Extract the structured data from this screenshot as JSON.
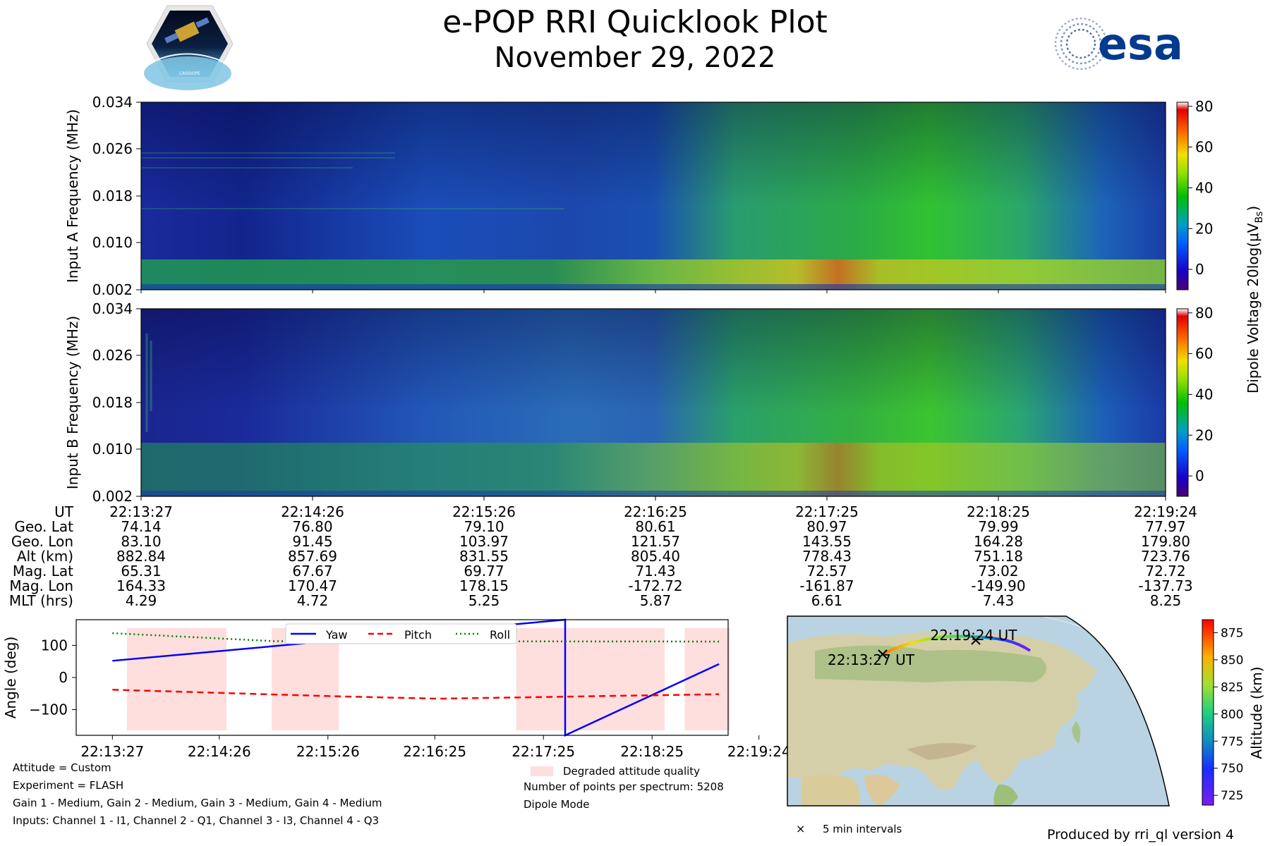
{
  "header": {
    "title": "e-POP RRI Quicklook Plot",
    "subtitle": "November 29, 2022",
    "left_logo": {
      "name": "cassiope-mission-logo",
      "text": "CASSIOPE"
    },
    "right_logo": {
      "name": "esa-logo",
      "text": "esa"
    }
  },
  "colors": {
    "yaw": "#0000ff",
    "pitch": "#ff0000",
    "roll": "#008000",
    "degraded": "#ffdede",
    "map_ocean": "#b9d3e3",
    "map_land": "#d8d2b0"
  },
  "chart_data": [
    {
      "id": "spectrogram-a",
      "type": "heatmap",
      "ylabel": "Input A Frequency (MHz)",
      "yticks": [
        "0.002",
        "0.010",
        "0.018",
        "0.026",
        "0.034"
      ],
      "ylim": [
        0.002,
        0.034
      ],
      "cbar_ticks": [
        "0",
        "20",
        "40",
        "60",
        "80"
      ],
      "clim": [
        -10,
        82
      ]
    },
    {
      "id": "spectrogram-b",
      "type": "heatmap",
      "ylabel": "Input B Frequency (MHz)",
      "yticks": [
        "0.002",
        "0.010",
        "0.018",
        "0.026",
        "0.034"
      ],
      "ylim": [
        0.002,
        0.034
      ],
      "cbar_ticks": [
        "0",
        "20",
        "40",
        "60",
        "80"
      ],
      "clim": [
        -10,
        82
      ]
    },
    {
      "id": "attitude",
      "type": "line",
      "ylabel": "Angle (deg)",
      "yticks": [
        "100",
        "0",
        "−100"
      ],
      "ytick_values": [
        100,
        0,
        -100
      ],
      "ylim": [
        -180,
        180
      ],
      "xticks": [
        "22:13:27",
        "22:14:26",
        "22:15:26",
        "22:16:25",
        "22:17:25",
        "22:18:25",
        "22:19:24"
      ],
      "xlim_seconds": [
        -20,
        340
      ],
      "series": [
        {
          "name": "Yaw",
          "style": "solid",
          "x": [
            0,
            250,
            250,
            335
          ],
          "y": [
            52,
            180,
            -180,
            42
          ]
        },
        {
          "name": "Pitch",
          "style": "dashed",
          "x": [
            0,
            120,
            180,
            335
          ],
          "y": [
            -38,
            -58,
            -66,
            -52
          ]
        },
        {
          "name": "Roll",
          "style": "dotted",
          "x": [
            0,
            90,
            335
          ],
          "y": [
            138,
            113,
            112
          ]
        }
      ],
      "degraded_intervals": [
        [
          8,
          63
        ],
        [
          88,
          125
        ],
        [
          223,
          305
        ],
        [
          316,
          341
        ]
      ],
      "legend": {
        "position": "top-center",
        "yaw": "Yaw",
        "pitch": "Pitch",
        "roll": "Roll"
      }
    }
  ],
  "shared_colorbar_label": "Dipole Voltage 20log(μV",
  "shared_colorbar_label_sub": "Bs",
  "ephemeris": {
    "labels": [
      "UT",
      "Geo. Lat",
      "Geo. Lon",
      "Alt (km)",
      "Mag. Lat",
      "Mag. Lon",
      "MLT (hrs)"
    ],
    "columns": [
      [
        "22:13:27",
        "74.14",
        "83.10",
        "882.84",
        "65.31",
        "164.33",
        "4.29"
      ],
      [
        "22:14:26",
        "76.80",
        "91.45",
        "857.69",
        "67.67",
        "170.47",
        "4.72"
      ],
      [
        "22:15:26",
        "79.10",
        "103.97",
        "831.55",
        "69.77",
        "178.15",
        "5.25"
      ],
      [
        "22:16:25",
        "80.61",
        "121.57",
        "805.40",
        "71.43",
        "-172.72",
        "5.87"
      ],
      [
        "22:17:25",
        "80.97",
        "143.55",
        "778.43",
        "72.57",
        "-161.87",
        "6.61"
      ],
      [
        "22:18:25",
        "79.99",
        "164.28",
        "751.18",
        "73.02",
        "-149.90",
        "7.43"
      ],
      [
        "22:19:24",
        "77.97",
        "179.80",
        "723.76",
        "72.72",
        "-137.73",
        "8.25"
      ]
    ]
  },
  "info_left": {
    "attitude": "Attitude = Custom",
    "experiment": "Experiment = FLASH",
    "gains": "Gain 1 - Medium, Gain 2 - Medium, Gain 3 - Medium, Gain 4 - Medium",
    "inputs": "Inputs: Channel 1 - I1, Channel 2 - Q1, Channel 3 - I3, Channel 4 - Q3"
  },
  "info_right": {
    "degraded_legend": "Degraded attitude quality",
    "points": "Number of points per spectrum: 5208",
    "mode": "Dipole Mode"
  },
  "map": {
    "start_label": "22:13:27 UT",
    "end_label": "22:19:24 UT",
    "interval_legend": "5 min intervals",
    "alt_colorbar_label": "Altitude (km)",
    "alt_ticks": [
      "875",
      "850",
      "825",
      "800",
      "775",
      "750",
      "725"
    ],
    "alt_tick_values": [
      875,
      850,
      825,
      800,
      775,
      750,
      725
    ],
    "alt_range": [
      716,
      887
    ]
  },
  "footer": {
    "produced_by": "Produced by rri_ql version 4"
  }
}
